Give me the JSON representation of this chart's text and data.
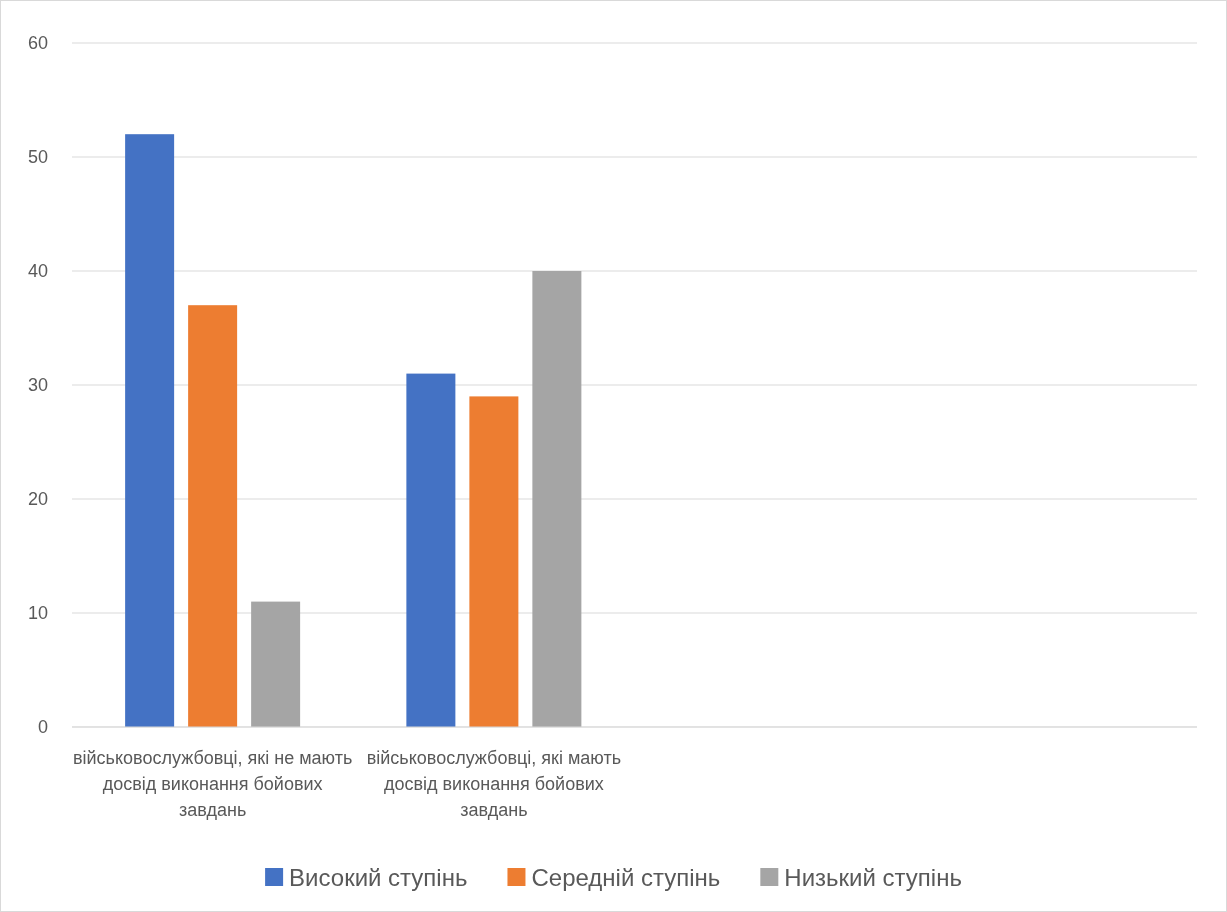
{
  "chart_data": {
    "type": "bar",
    "categories": [
      "військовослужбовці, які не мають досвід виконання бойових завдань",
      "військовослужбовці, які мають досвід виконання бойових завдань",
      null,
      null
    ],
    "series": [
      {
        "name": "Високий ступінь",
        "color": "#4472c4",
        "values": [
          52,
          31,
          null,
          null
        ]
      },
      {
        "name": "Середній ступінь",
        "color": "#ed7d31",
        "values": [
          37,
          29,
          null,
          null
        ]
      },
      {
        "name": "Низький ступінь",
        "color": "#a5a5a5",
        "values": [
          11,
          40,
          null,
          null
        ]
      }
    ],
    "ylim": [
      0,
      60
    ],
    "yticks": [
      0,
      10,
      20,
      30,
      40,
      50,
      60
    ],
    "grid": "y",
    "legend": "bottom"
  }
}
